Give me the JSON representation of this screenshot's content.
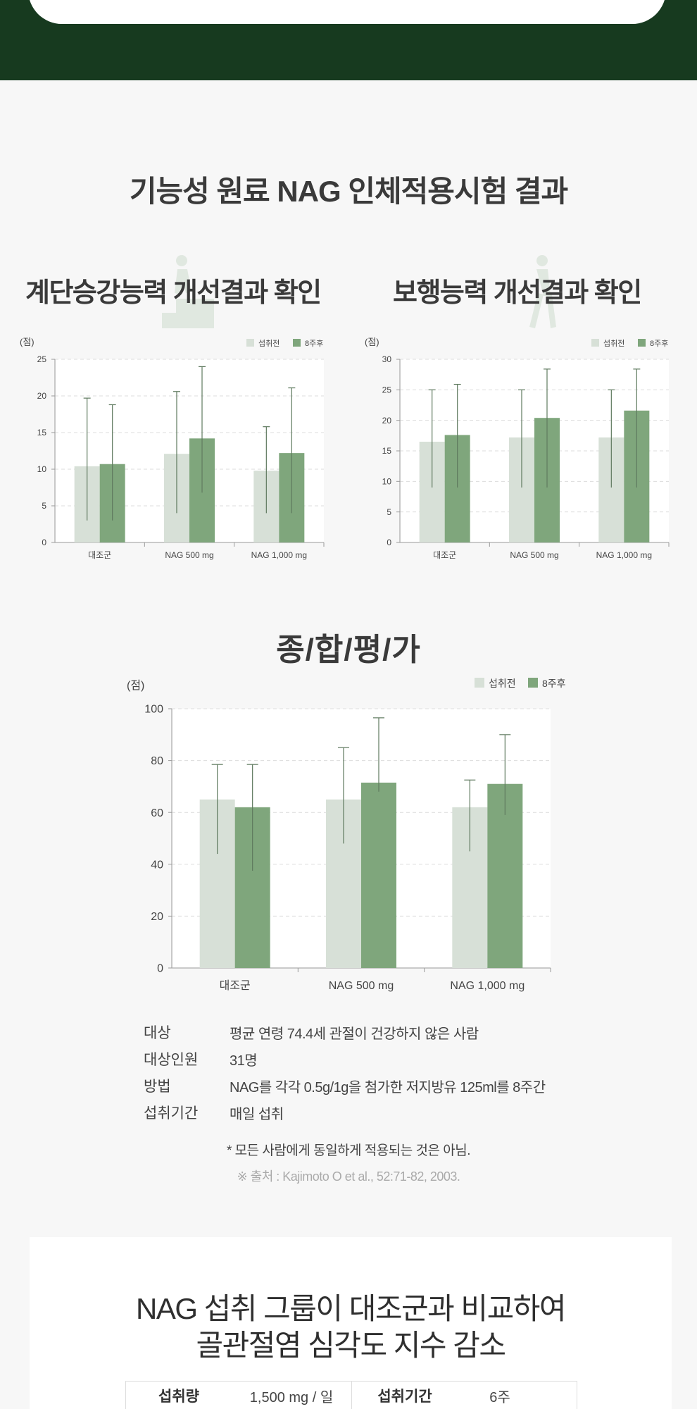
{
  "header": {
    "main_title": "기능성 원료 NAG 인체적용시험 결과"
  },
  "subtitles": {
    "stairs": "계단승강능력 개선결과 확인",
    "walking": "보행능력 개선결과 확인"
  },
  "section2_title": "종/합/평/가",
  "colors": {
    "before": "#d7e0d7",
    "after": "#7fa67c",
    "errorbar": "#5f7a5f",
    "grid": "#dcdcdc",
    "axis": "#9a9a9a",
    "dark_green": "#173a1f"
  },
  "chart_data": [
    {
      "type": "bar",
      "ylabel": "(점)",
      "ylim": [
        0,
        25
      ],
      "yticks": [
        0,
        5,
        10,
        15,
        20,
        25
      ],
      "categories": [
        "대조군",
        "NAG 500 mg",
        "NAG 1,000 mg"
      ],
      "series": [
        {
          "name": "섭취전",
          "values": [
            10.4,
            12.1,
            9.8
          ],
          "error_low": [
            3.0,
            4.0,
            4.0
          ],
          "error_high": [
            19.7,
            20.6,
            15.8
          ]
        },
        {
          "name": "8주후",
          "values": [
            10.7,
            14.2,
            12.2
          ],
          "error_low": [
            3.0,
            6.8,
            4.0
          ],
          "error_high": [
            18.8,
            24.0,
            21.1
          ]
        }
      ],
      "legend": "top-right",
      "grid": true
    },
    {
      "type": "bar",
      "ylabel": "(점)",
      "ylim": [
        0,
        30
      ],
      "yticks": [
        0,
        5,
        10,
        15,
        20,
        25,
        30
      ],
      "categories": [
        "대조군",
        "NAG 500 mg",
        "NAG 1,000 mg"
      ],
      "series": [
        {
          "name": "섭취전",
          "values": [
            16.5,
            17.2,
            17.2
          ],
          "error_low": [
            9.0,
            9.0,
            9.0
          ],
          "error_high": [
            25.0,
            25.0,
            25.0
          ]
        },
        {
          "name": "8주후",
          "values": [
            17.6,
            20.4,
            21.6
          ],
          "error_low": [
            9.0,
            9.0,
            9.0
          ],
          "error_high": [
            25.9,
            28.4,
            28.4
          ]
        }
      ],
      "legend": "top-right",
      "grid": true
    },
    {
      "type": "bar",
      "ylabel": "(점)",
      "ylim": [
        0,
        100
      ],
      "yticks": [
        0,
        20,
        40,
        60,
        80,
        100
      ],
      "categories": [
        "대조군",
        "NAG 500 mg",
        "NAG 1,000 mg"
      ],
      "series": [
        {
          "name": "섭취전",
          "values": [
            65,
            65,
            62
          ],
          "error_low": [
            44,
            48,
            45
          ],
          "error_high": [
            78.5,
            85,
            72.5
          ]
        },
        {
          "name": "8주후",
          "values": [
            62,
            71.5,
            71
          ],
          "error_low": [
            37.5,
            68,
            59
          ],
          "error_high": [
            78.5,
            96.5,
            90
          ]
        }
      ],
      "legend": "top-right",
      "grid": true
    }
  ],
  "study_info": [
    {
      "label": "대상",
      "value": "평균 연령 74.4세 관절이 건강하지 않은 사람"
    },
    {
      "label": "대상인원",
      "value": "31명"
    },
    {
      "label": "방법",
      "value": "NAG를 각각 0.5g/1g을 첨가한 저지방유 125ml를 8주간"
    },
    {
      "label": "섭취기간",
      "value": "매일 섭취"
    }
  ],
  "note": "* 모든 사람에게 동일하게 적용되는 것은 아님.",
  "source": "※ 출처 : Kajimoto O et al., 52:71-82, 2003.",
  "bottom": {
    "title_line1": "NAG 섭취 그룹이 대조군과 비교하여",
    "title_line2": "골관절염 심각도 지수 감소",
    "table": [
      {
        "key": "섭취량",
        "value": "1,500 mg / 일"
      },
      {
        "key": "섭취기간",
        "value": "6주"
      }
    ]
  }
}
